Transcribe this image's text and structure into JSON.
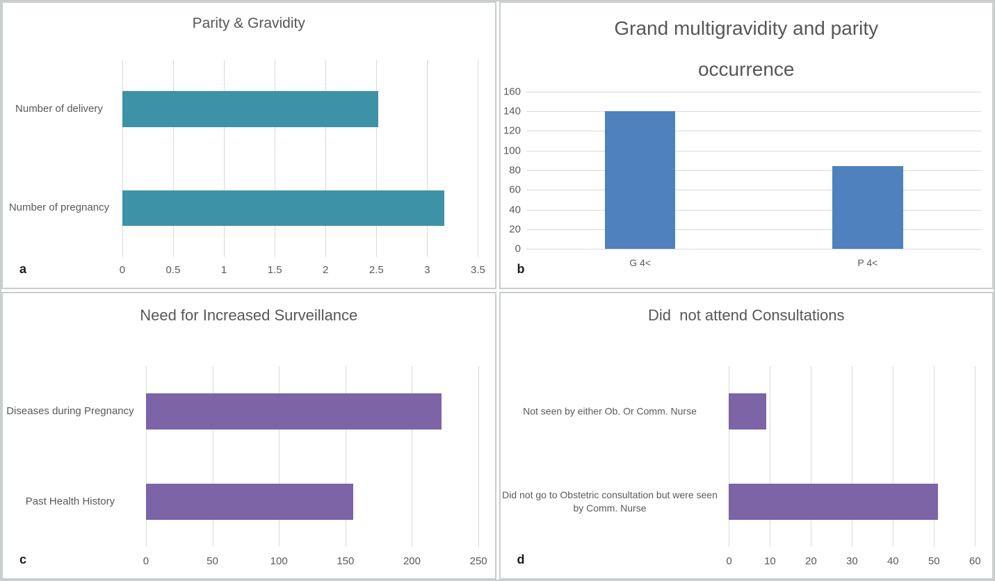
{
  "figure": {
    "background": "#ffffff",
    "panel_border_color": "#c9cdcd",
    "grid_color": "#d9d9d9",
    "axis_text_color": "#595959",
    "title_color": "#565656",
    "letter_color": "#1a1a1a"
  },
  "chart_data": [
    {
      "panel_letter": "a",
      "type": "bar",
      "orientation": "horizontal",
      "title": "Parity & Gravidity",
      "bar_color": "#3E92A8",
      "categories": [
        "Number of delivery",
        "Number of pregnancy"
      ],
      "values": [
        2.52,
        3.17
      ],
      "axis": {
        "min": 0,
        "max": 3.5,
        "step": 0.5,
        "ticks": [
          0,
          0.5,
          1,
          1.5,
          2,
          2.5,
          3,
          3.5
        ],
        "tick_labels": [
          "0",
          "0.5",
          "1",
          "1.5",
          "2",
          "2.5",
          "3",
          "3.5"
        ]
      },
      "grid": true,
      "legend": false
    },
    {
      "panel_letter": "b",
      "type": "bar",
      "orientation": "vertical",
      "title": "Grand multigravidity and parity\noccurrence",
      "bar_color": "#4E81BD",
      "categories": [
        "G 4<",
        "P 4<"
      ],
      "values": [
        140,
        84
      ],
      "axis": {
        "min": 0,
        "max": 160,
        "step": 20,
        "ticks": [
          0,
          20,
          40,
          60,
          80,
          100,
          120,
          140,
          160
        ],
        "tick_labels": [
          "0",
          "20",
          "40",
          "60",
          "80",
          "100",
          "120",
          "140",
          "160"
        ]
      },
      "grid": true,
      "legend": false
    },
    {
      "panel_letter": "c",
      "type": "bar",
      "orientation": "horizontal",
      "title": "Need for Increased Surveillance",
      "bar_color": "#7C64A7",
      "categories": [
        "Diseases during Pregnancy",
        "Past Health History"
      ],
      "values": [
        222,
        156
      ],
      "axis": {
        "min": 0,
        "max": 250,
        "step": 50,
        "ticks": [
          0,
          50,
          100,
          150,
          200,
          250
        ],
        "tick_labels": [
          "0",
          "50",
          "100",
          "150",
          "200",
          "250"
        ]
      },
      "grid": true,
      "legend": false
    },
    {
      "panel_letter": "d",
      "type": "bar",
      "orientation": "horizontal",
      "title": "Did  not attend Consultations",
      "bar_color": "#7C64A7",
      "categories": [
        "Not seen by either Ob. Or Comm. Nurse",
        "Did not go to Obstetric consultation but were seen by Comm. Nurse"
      ],
      "values": [
        9,
        51
      ],
      "axis": {
        "min": 0,
        "max": 60,
        "step": 10,
        "ticks": [
          0,
          10,
          20,
          30,
          40,
          50,
          60
        ],
        "tick_labels": [
          "0",
          "10",
          "20",
          "30",
          "40",
          "50",
          "60"
        ]
      },
      "grid": true,
      "legend": false
    }
  ]
}
